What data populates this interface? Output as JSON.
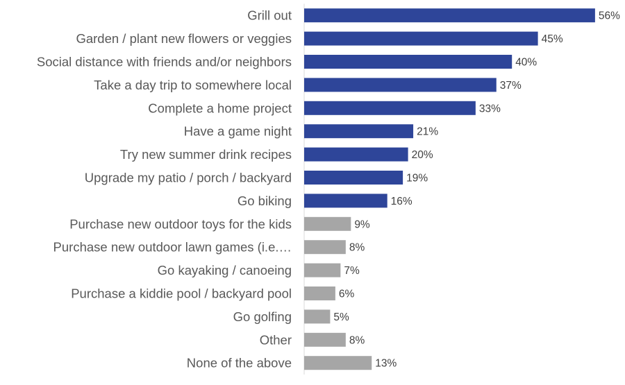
{
  "chart_data": {
    "type": "bar",
    "orientation": "horizontal",
    "categories": [
      "Grill out",
      "Garden / plant new flowers or veggies",
      "Social distance with friends and/or neighbors",
      "Take a day trip to somewhere local",
      "Complete a home project",
      "Have a game night",
      "Try new summer drink recipes",
      "Upgrade my patio / porch / backyard",
      "Go biking",
      "Purchase new outdoor toys for the kids",
      "Purchase new outdoor lawn games (i.e.…",
      "Go kayaking / canoeing",
      "Purchase a kiddie pool / backyard pool",
      "Go golfing",
      "Other",
      "None of the above"
    ],
    "values": [
      56,
      45,
      40,
      37,
      33,
      21,
      20,
      19,
      16,
      9,
      8,
      7,
      6,
      5,
      8,
      13
    ],
    "value_labels": [
      "56%",
      "45%",
      "40%",
      "37%",
      "33%",
      "21%",
      "20%",
      "19%",
      "16%",
      "9%",
      "8%",
      "7%",
      "6%",
      "5%",
      "8%",
      "13%"
    ],
    "bar_colors": [
      "#2e4599",
      "#2e4599",
      "#2e4599",
      "#2e4599",
      "#2e4599",
      "#2e4599",
      "#2e4599",
      "#2e4599",
      "#2e4599",
      "#a6a6a6",
      "#a6a6a6",
      "#a6a6a6",
      "#a6a6a6",
      "#a6a6a6",
      "#a6a6a6",
      "#a6a6a6"
    ],
    "xlim": [
      0,
      56
    ],
    "axis_line_color": "#d9d9d9",
    "grid": false,
    "legend": "none"
  }
}
